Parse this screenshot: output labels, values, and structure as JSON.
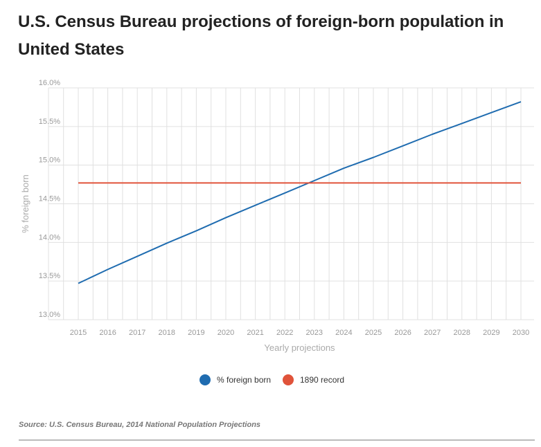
{
  "header": {
    "title": "U.S. Census Bureau projections of foreign-born population in United States"
  },
  "footer": {
    "source": "Source: U.S. Census Bureau, 2014 National Population Projections"
  },
  "chart_data": {
    "type": "line",
    "title": "U.S. Census Bureau projections of foreign-born population in United States",
    "xlabel": "Yearly projections",
    "ylabel": "% foreign born",
    "x": [
      2015,
      2016,
      2017,
      2018,
      2019,
      2020,
      2021,
      2022,
      2023,
      2024,
      2025,
      2026,
      2027,
      2028,
      2029,
      2030
    ],
    "x_tick_labels": [
      "2015",
      "2016",
      "2017",
      "2018",
      "2019",
      "2020",
      "2021",
      "2022",
      "2023",
      "2024",
      "2025",
      "2026",
      "2027",
      "2028",
      "2029",
      "2030"
    ],
    "y_tick_labels": [
      "13.0%",
      "13.5%",
      "14.0%",
      "14.5%",
      "15.0%",
      "15.5%",
      "16.0%"
    ],
    "ylim": [
      13.0,
      16.0
    ],
    "grid": true,
    "legend_position": "bottom",
    "series": [
      {
        "name": "% foreign born",
        "color": "#1f6cb0",
        "values": [
          13.47,
          13.65,
          13.82,
          13.99,
          14.15,
          14.32,
          14.48,
          14.64,
          14.8,
          14.96,
          15.1,
          15.25,
          15.4,
          15.54,
          15.68,
          15.82
        ]
      },
      {
        "name": "1890 record",
        "color": "#e0533a",
        "values": [
          14.77,
          14.77,
          14.77,
          14.77,
          14.77,
          14.77,
          14.77,
          14.77,
          14.77,
          14.77,
          14.77,
          14.77,
          14.77,
          14.77,
          14.77,
          14.77
        ]
      }
    ]
  }
}
